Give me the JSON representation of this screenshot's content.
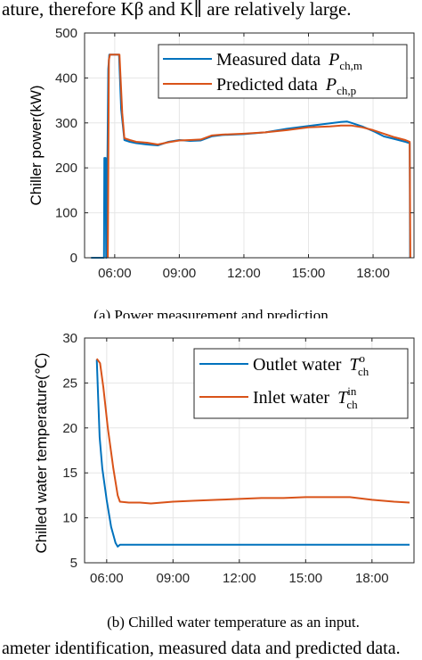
{
  "page": {
    "top_text": "ature, therefore Kβ and K∥ are relatively large.",
    "caption_a": "(a) Power measurement and prediction",
    "caption_b": "(b) Chilled water temperature as an input.",
    "bottom_text": "ameter identification, measured data and predicted data."
  },
  "colors": {
    "blue": "#0072BD",
    "orange": "#D95319",
    "grid": "#e6e6e6",
    "axis": "#262626"
  },
  "chart_data": [
    {
      "type": "line",
      "title": "",
      "xlabel": "",
      "ylabel": "Chiller power(kW)",
      "xlim": [
        4.6,
        19.9
      ],
      "ylim": [
        0,
        500
      ],
      "x_ticks": [
        6,
        9,
        12,
        15,
        18
      ],
      "x_tick_labels": [
        "06:00",
        "09:00",
        "12:00",
        "15:00",
        "18:00"
      ],
      "y_ticks": [
        0,
        100,
        200,
        300,
        400,
        500
      ],
      "grid": true,
      "legend_position": "top-right",
      "series": [
        {
          "name": "Measured data",
          "legend_symbol": "P",
          "legend_subscript": "ch,m",
          "color": "#0072BD",
          "points": [
            [
              4.9,
              0
            ],
            [
              5.5,
              0
            ],
            [
              5.52,
              222
            ],
            [
              5.58,
              222
            ],
            [
              5.6,
              0
            ],
            [
              5.62,
              0
            ],
            [
              5.7,
              420
            ],
            [
              5.75,
              452
            ],
            [
              6.15,
              452
            ],
            [
              6.2,
              452
            ],
            [
              6.3,
              330
            ],
            [
              6.45,
              262
            ],
            [
              6.7,
              258
            ],
            [
              7.0,
              255
            ],
            [
              7.5,
              252
            ],
            [
              8.0,
              250
            ],
            [
              8.5,
              258
            ],
            [
              9.0,
              262
            ],
            [
              9.5,
              260
            ],
            [
              10.0,
              261
            ],
            [
              10.5,
              270
            ],
            [
              11.0,
              273
            ],
            [
              12.0,
              275
            ],
            [
              13.0,
              279
            ],
            [
              14.0,
              287
            ],
            [
              15.0,
              293
            ],
            [
              15.5,
              296
            ],
            [
              16.0,
              299
            ],
            [
              16.5,
              302
            ],
            [
              16.8,
              303
            ],
            [
              17.0,
              300
            ],
            [
              17.5,
              292
            ],
            [
              18.0,
              282
            ],
            [
              18.5,
              270
            ],
            [
              19.0,
              264
            ],
            [
              19.5,
              258
            ],
            [
              19.7,
              255
            ],
            [
              19.72,
              0
            ]
          ]
        },
        {
          "name": "Predicted data",
          "legend_symbol": "P",
          "legend_subscript": "ch,p",
          "color": "#D95319",
          "points": [
            [
              5.68,
              0
            ],
            [
              5.73,
              440
            ],
            [
              5.78,
              452
            ],
            [
              6.15,
              452
            ],
            [
              6.22,
              452
            ],
            [
              6.35,
              322
            ],
            [
              6.45,
              266
            ],
            [
              6.7,
              262
            ],
            [
              7.0,
              258
            ],
            [
              7.5,
              256
            ],
            [
              8.0,
              252
            ],
            [
              8.5,
              257
            ],
            [
              9.0,
              261
            ],
            [
              9.5,
              262
            ],
            [
              10.0,
              263
            ],
            [
              10.5,
              272
            ],
            [
              11.0,
              274
            ],
            [
              12.0,
              276
            ],
            [
              13.0,
              279
            ],
            [
              14.0,
              284
            ],
            [
              15.0,
              290
            ],
            [
              16.0,
              292
            ],
            [
              16.5,
              294
            ],
            [
              17.0,
              294
            ],
            [
              17.5,
              290
            ],
            [
              18.0,
              284
            ],
            [
              18.5,
              276
            ],
            [
              19.0,
              268
            ],
            [
              19.5,
              262
            ],
            [
              19.7,
              258
            ],
            [
              19.73,
              0
            ]
          ]
        }
      ]
    },
    {
      "type": "line",
      "title": "",
      "xlabel": "",
      "ylabel": "Chilled water temperature(℃)",
      "xlim": [
        5.0,
        19.9
      ],
      "ylim": [
        5,
        30
      ],
      "x_ticks": [
        6,
        9,
        12,
        15,
        18
      ],
      "x_tick_labels": [
        "06:00",
        "09:00",
        "12:00",
        "15:00",
        "18:00"
      ],
      "y_ticks": [
        5,
        10,
        15,
        20,
        25,
        30
      ],
      "grid": true,
      "legend_position": "top-right",
      "series": [
        {
          "name": "Outlet water",
          "legend_symbol": "T",
          "legend_subscript": "ch",
          "legend_superscript": "o",
          "color": "#0072BD",
          "points": [
            [
              5.55,
              27.6
            ],
            [
              5.62,
              23.0
            ],
            [
              5.68,
              19.0
            ],
            [
              5.8,
              15.5
            ],
            [
              6.0,
              12.0
            ],
            [
              6.2,
              9.0
            ],
            [
              6.4,
              7.2
            ],
            [
              6.5,
              6.8
            ],
            [
              6.6,
              7.0
            ],
            [
              8.0,
              7.0
            ],
            [
              10.0,
              7.0
            ],
            [
              12.0,
              7.0
            ],
            [
              14.0,
              7.0
            ],
            [
              16.0,
              7.0
            ],
            [
              18.0,
              7.0
            ],
            [
              19.7,
              7.0
            ]
          ]
        },
        {
          "name": "Inlet water",
          "legend_symbol": "T",
          "legend_subscript": "ch",
          "legend_superscript": "in",
          "color": "#D95319",
          "points": [
            [
              5.55,
              27.7
            ],
            [
              5.7,
              27.2
            ],
            [
              5.85,
              24.5
            ],
            [
              6.05,
              20.0
            ],
            [
              6.3,
              15.5
            ],
            [
              6.5,
              12.5
            ],
            [
              6.6,
              11.8
            ],
            [
              7.0,
              11.7
            ],
            [
              7.5,
              11.7
            ],
            [
              8.0,
              11.6
            ],
            [
              8.5,
              11.7
            ],
            [
              9.0,
              11.8
            ],
            [
              10.0,
              11.9
            ],
            [
              11.0,
              12.0
            ],
            [
              12.0,
              12.1
            ],
            [
              13.0,
              12.2
            ],
            [
              14.0,
              12.2
            ],
            [
              15.0,
              12.3
            ],
            [
              16.0,
              12.3
            ],
            [
              17.0,
              12.3
            ],
            [
              18.0,
              12.0
            ],
            [
              19.0,
              11.8
            ],
            [
              19.7,
              11.7
            ]
          ]
        }
      ]
    }
  ]
}
